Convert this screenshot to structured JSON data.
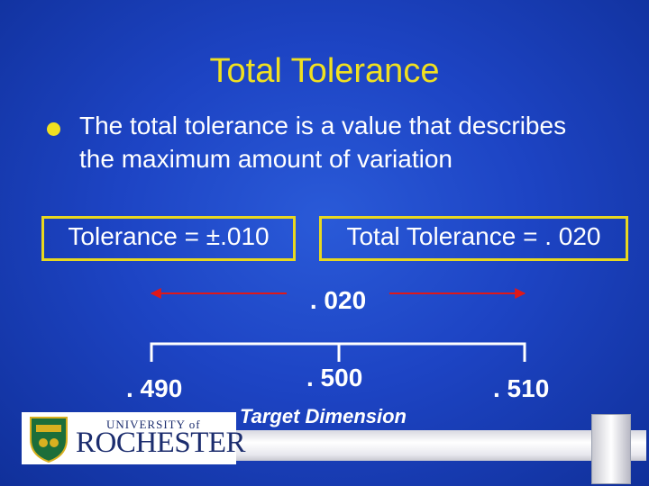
{
  "slide": {
    "title": "Total Tolerance",
    "bullet": "The total tolerance is a value that describes the maximum amount of variation",
    "tolerance_box": "Tolerance = ±.010",
    "total_tolerance_box": "Total Tolerance = . 020"
  },
  "diagram": {
    "range_label": ". 020",
    "low_value": ". 490",
    "target_value": ". 500",
    "high_value": ". 510",
    "target_label": "Target Dimension",
    "arrow_color": "#e01818",
    "bracket_color": "#ffffff"
  },
  "logo": {
    "line1": "UNIVERSITY of",
    "line2": "ROCHESTER",
    "icon": "university-seal-icon"
  },
  "colors": {
    "background": "#1d44c4",
    "title": "#f0e020",
    "text": "#ffffff",
    "box_border": "#e8d820"
  }
}
